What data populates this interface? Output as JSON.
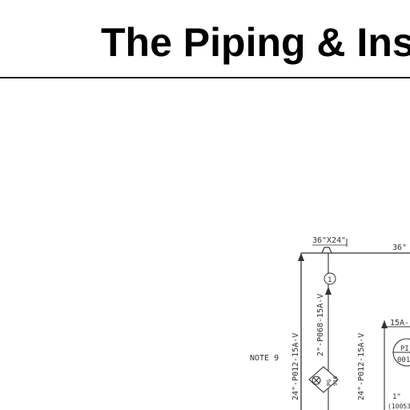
{
  "slide": {
    "title": "The Piping & Ins"
  },
  "drawing": {
    "reducer_label": "36\"X24\"",
    "header_size_label": "36\"",
    "note_label": "NOTE 9",
    "line_1": "24\"-P012-15A-V",
    "line_2": "2\"-P068-15A-V",
    "line_3": "24\"-P012-15A-V",
    "line_4": "15A-",
    "balloon_1": "1",
    "valve_tag_top": "PG",
    "valve_tag_bottom": "916",
    "instrument_top": "PI",
    "instrument_bottom": "001",
    "small_size": "1\"",
    "small_tag": "(10053"
  }
}
